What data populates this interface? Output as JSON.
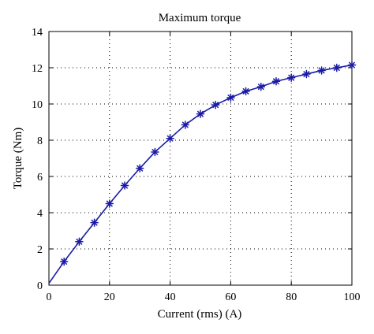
{
  "chart_data": {
    "type": "line",
    "title": "Maximum torque",
    "xlabel": "Current (rms) (A)",
    "ylabel": "Torque (Nm)",
    "xlim": [
      0,
      100
    ],
    "ylim": [
      0,
      14
    ],
    "x_ticks": [
      0,
      20,
      40,
      60,
      80,
      100
    ],
    "y_ticks": [
      0,
      2,
      4,
      6,
      8,
      10,
      12,
      14
    ],
    "x_tick_labels": [
      "0",
      "20",
      "40",
      "60",
      "80",
      "100"
    ],
    "y_tick_labels": [
      "0",
      "2",
      "4",
      "6",
      "8",
      "10",
      "12",
      "14"
    ],
    "grid": true,
    "grid_style": "dotted",
    "series": [
      {
        "color": "#1a1aa6",
        "marker": "asterisk",
        "x": [
          0,
          5,
          10,
          15,
          20,
          25,
          30,
          35,
          40,
          45,
          50,
          55,
          60,
          65,
          70,
          75,
          80,
          85,
          90,
          95,
          100
        ],
        "y": [
          0.1,
          1.3,
          2.4,
          3.45,
          4.5,
          5.5,
          6.45,
          7.35,
          8.1,
          8.85,
          9.45,
          9.95,
          10.35,
          10.7,
          10.95,
          11.25,
          11.45,
          11.65,
          11.85,
          12.0,
          12.15
        ],
        "marker_x": [
          5,
          10,
          15,
          20,
          25,
          30,
          35,
          40,
          45,
          50,
          55,
          60,
          65,
          70,
          75,
          80,
          85,
          90,
          95,
          100
        ]
      }
    ]
  }
}
